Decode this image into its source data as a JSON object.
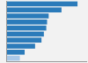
{
  "chart_data": {
    "type": "bar",
    "orientation": "horizontal",
    "categories": [
      null,
      null,
      null,
      null,
      null,
      null,
      null,
      null,
      null,
      null
    ],
    "values": [
      88,
      68,
      52,
      50,
      49,
      46,
      43,
      35,
      22,
      16
    ],
    "colors": [
      "#2b7bba",
      "#2b7bba",
      "#2b7bba",
      "#2b7bba",
      "#2b7bba",
      "#2b7bba",
      "#2b7bba",
      "#2b7bba",
      "#2b7bba",
      "#a8c8e8"
    ],
    "xlim": [
      0,
      100
    ],
    "tick_labels": false
  }
}
